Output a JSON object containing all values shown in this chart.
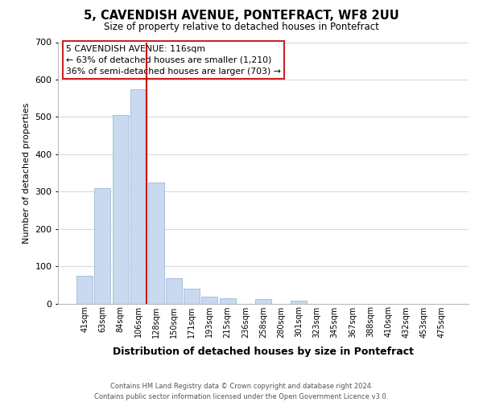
{
  "title": "5, CAVENDISH AVENUE, PONTEFRACT, WF8 2UU",
  "subtitle": "Size of property relative to detached houses in Pontefract",
  "xlabel": "Distribution of detached houses by size in Pontefract",
  "ylabel": "Number of detached properties",
  "bar_labels": [
    "41sqm",
    "63sqm",
    "84sqm",
    "106sqm",
    "128sqm",
    "150sqm",
    "171sqm",
    "193sqm",
    "215sqm",
    "236sqm",
    "258sqm",
    "280sqm",
    "301sqm",
    "323sqm",
    "345sqm",
    "367sqm",
    "388sqm",
    "410sqm",
    "432sqm",
    "453sqm",
    "475sqm"
  ],
  "bar_values": [
    75,
    310,
    505,
    575,
    325,
    67,
    40,
    18,
    15,
    0,
    11,
    0,
    7,
    0,
    0,
    0,
    0,
    0,
    0,
    0,
    0
  ],
  "bar_color": "#c8d9f0",
  "bar_edge_color": "#a0b8d8",
  "vline_x": 3.45,
  "vline_color": "#cc0000",
  "ylim": [
    0,
    700
  ],
  "yticks": [
    0,
    100,
    200,
    300,
    400,
    500,
    600,
    700
  ],
  "annotation_title": "5 CAVENDISH AVENUE: 116sqm",
  "annotation_line1": "← 63% of detached houses are smaller (1,210)",
  "annotation_line2": "36% of semi-detached houses are larger (703) →",
  "footer_line1": "Contains HM Land Registry data © Crown copyright and database right 2024.",
  "footer_line2": "Contains public sector information licensed under the Open Government Licence v3.0.",
  "background_color": "#ffffff",
  "grid_color": "#d0dce8"
}
